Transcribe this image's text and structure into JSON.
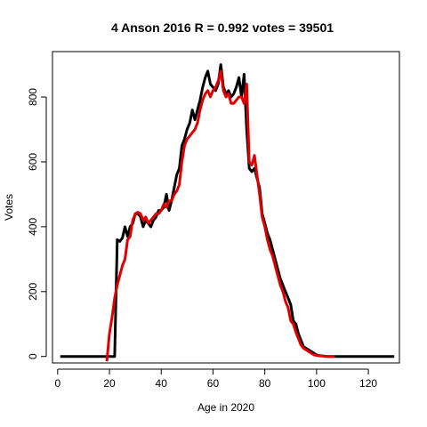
{
  "chart_data": {
    "type": "line",
    "title": "4 Anson 2016 R = 0.992 votes = 39501",
    "xlabel": "Age in 2020",
    "ylabel": "Votes",
    "xlim": [
      -2,
      132
    ],
    "ylim": [
      -20,
      940
    ],
    "xticks": [
      0,
      20,
      40,
      60,
      80,
      100,
      120
    ],
    "yticks": [
      0,
      200,
      400,
      600,
      800
    ],
    "grid": false,
    "series": [
      {
        "color": "#000000",
        "x": [
          1,
          2,
          3,
          4,
          5,
          6,
          7,
          8,
          9,
          10,
          11,
          12,
          13,
          14,
          15,
          16,
          17,
          18,
          19,
          20,
          21,
          22,
          23,
          24,
          25,
          26,
          27,
          28,
          29,
          30,
          31,
          32,
          33,
          34,
          35,
          36,
          37,
          38,
          39,
          40,
          41,
          42,
          43,
          44,
          45,
          46,
          47,
          48,
          49,
          50,
          51,
          52,
          53,
          54,
          55,
          56,
          57,
          58,
          59,
          60,
          61,
          62,
          63,
          64,
          65,
          66,
          67,
          68,
          69,
          70,
          71,
          72,
          73,
          74,
          75,
          76,
          77,
          78,
          79,
          80,
          81,
          82,
          83,
          84,
          85,
          86,
          87,
          88,
          89,
          90,
          91,
          92,
          93,
          94,
          95,
          96,
          97,
          98,
          99,
          100,
          101,
          102,
          103,
          104,
          105,
          106,
          107,
          108,
          109,
          110,
          111,
          112,
          113,
          114,
          115,
          116,
          117,
          118,
          119,
          120,
          121,
          122,
          123,
          124,
          125,
          126,
          127,
          128,
          129,
          130
        ],
        "y": [
          0,
          0,
          0,
          0,
          0,
          0,
          0,
          0,
          0,
          0,
          0,
          0,
          0,
          0,
          0,
          0,
          0,
          0,
          0,
          0,
          0,
          0,
          360,
          355,
          365,
          400,
          370,
          400,
          410,
          440,
          440,
          430,
          400,
          420,
          410,
          400,
          420,
          430,
          450,
          450,
          460,
          500,
          450,
          480,
          520,
          560,
          580,
          650,
          670,
          700,
          720,
          760,
          730,
          760,
          790,
          830,
          860,
          880,
          840,
          830,
          820,
          840,
          900,
          830,
          810,
          820,
          800,
          810,
          830,
          860,
          800,
          870,
          700,
          580,
          570,
          580,
          550,
          520,
          440,
          410,
          380,
          360,
          330,
          300,
          270,
          240,
          220,
          200,
          180,
          160,
          110,
          100,
          70,
          50,
          30,
          25,
          20,
          15,
          10,
          5,
          3,
          2,
          1,
          0,
          0,
          0,
          0,
          0,
          0,
          0,
          0,
          0,
          0,
          0,
          0,
          0,
          0,
          0,
          0,
          0,
          0,
          0,
          0,
          0,
          0,
          0,
          0,
          0,
          0,
          0
        ],
        "x_start_note": ""
      },
      {
        "color": "#e00000",
        "x": [
          19,
          20,
          21,
          22,
          23,
          24,
          25,
          26,
          27,
          28,
          29,
          30,
          31,
          32,
          33,
          34,
          35,
          36,
          37,
          38,
          39,
          40,
          41,
          42,
          43,
          44,
          45,
          46,
          47,
          48,
          49,
          50,
          51,
          52,
          53,
          54,
          55,
          56,
          57,
          58,
          59,
          60,
          61,
          62,
          63,
          64,
          65,
          66,
          67,
          68,
          69,
          70,
          71,
          72,
          73,
          74,
          75,
          76,
          77,
          78,
          79,
          80,
          81,
          82,
          83,
          84,
          85,
          86,
          87,
          88,
          89,
          90,
          91,
          92,
          93,
          94,
          95,
          96,
          97,
          98,
          99,
          100,
          101,
          102,
          103,
          104,
          105,
          106,
          107
        ],
        "y": [
          -15,
          70,
          120,
          180,
          220,
          250,
          280,
          300,
          360,
          370,
          420,
          440,
          445,
          440,
          420,
          430,
          410,
          420,
          430,
          440,
          440,
          450,
          470,
          460,
          480,
          480,
          500,
          510,
          530,
          600,
          650,
          670,
          680,
          690,
          700,
          720,
          760,
          790,
          810,
          820,
          800,
          820,
          830,
          850,
          880,
          820,
          800,
          810,
          780,
          780,
          790,
          800,
          800,
          780,
          840,
          600,
          590,
          620,
          560,
          500,
          430,
          400,
          360,
          330,
          310,
          280,
          250,
          220,
          200,
          170,
          150,
          110,
          100,
          75,
          55,
          35,
          25,
          20,
          15,
          10,
          5,
          3,
          2,
          1,
          0,
          0,
          0,
          0,
          0
        ]
      }
    ]
  }
}
